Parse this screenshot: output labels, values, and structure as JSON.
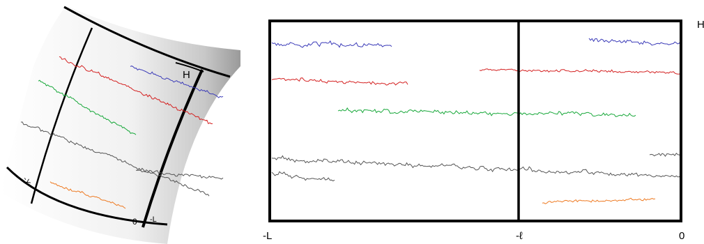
{
  "cylinder": {
    "label_h": "H",
    "label_y": "-Y",
    "label_zero": "0",
    "label_neg_l": "-L"
  },
  "flat": {
    "label_h": "H",
    "label_left": "-L",
    "label_mid": "-ℓ",
    "label_right": "0"
  },
  "colors": {
    "blue": "#3a3ab8",
    "red": "#d42020",
    "green": "#18a83a",
    "gray": "#555555",
    "orange": "#ee7a22",
    "frame": "#000000"
  }
}
